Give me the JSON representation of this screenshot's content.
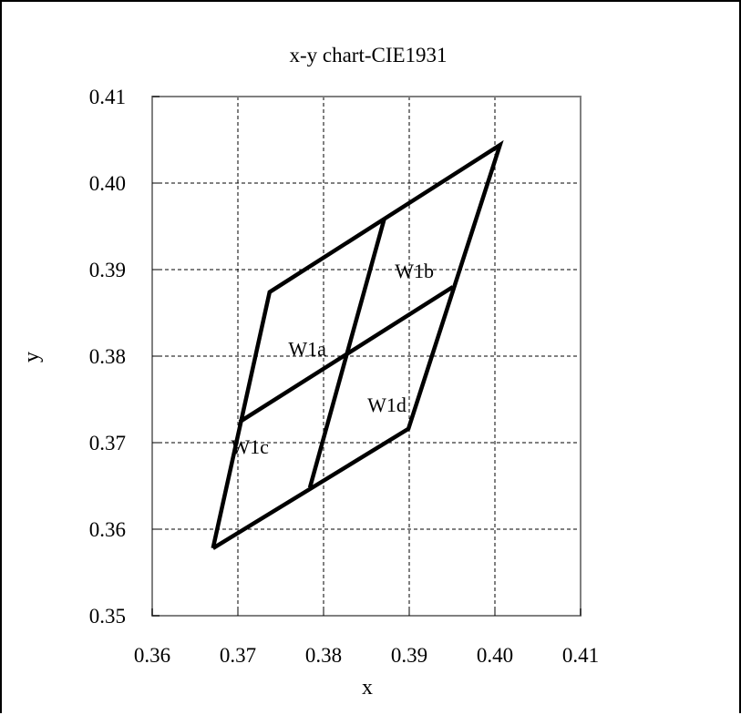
{
  "chart_data": {
    "type": "line",
    "title": "x-y chart-CIE1931",
    "xlabel": "x",
    "ylabel": "y",
    "xlim": [
      0.36,
      0.41
    ],
    "ylim": [
      0.35,
      0.41
    ],
    "xticks": [
      "0.36",
      "0.37",
      "0.38",
      "0.39",
      "0.40",
      "0.41"
    ],
    "yticks": [
      "0.35",
      "0.36",
      "0.37",
      "0.38",
      "0.39",
      "0.40",
      "0.41"
    ],
    "xtick_values": [
      0.36,
      0.37,
      0.38,
      0.39,
      0.4,
      0.41
    ],
    "ytick_values": [
      0.35,
      0.36,
      0.37,
      0.38,
      0.39,
      0.4,
      0.41
    ],
    "grid": true,
    "line_color": "#000000",
    "series": [
      {
        "x": [
          0.3671,
          0.3737,
          0.4006,
          0.3899,
          0.3671
        ],
        "y": [
          0.3578,
          0.3874,
          0.4044,
          0.3716,
          0.3578
        ]
      },
      {
        "x": [
          0.3702,
          0.3951
        ],
        "y": [
          0.3724,
          0.388
        ]
      },
      {
        "x": [
          0.3784,
          0.3871
        ],
        "y": [
          0.3648,
          0.3959
        ]
      }
    ],
    "annotations": [
      {
        "text": "W1a",
        "x": 0.3781,
        "y": 0.3809
      },
      {
        "text": "W1b",
        "x": 0.3906,
        "y": 0.3899
      },
      {
        "text": "W1c",
        "x": 0.3714,
        "y": 0.3696
      },
      {
        "text": "W1d",
        "x": 0.3874,
        "y": 0.3744
      }
    ]
  }
}
